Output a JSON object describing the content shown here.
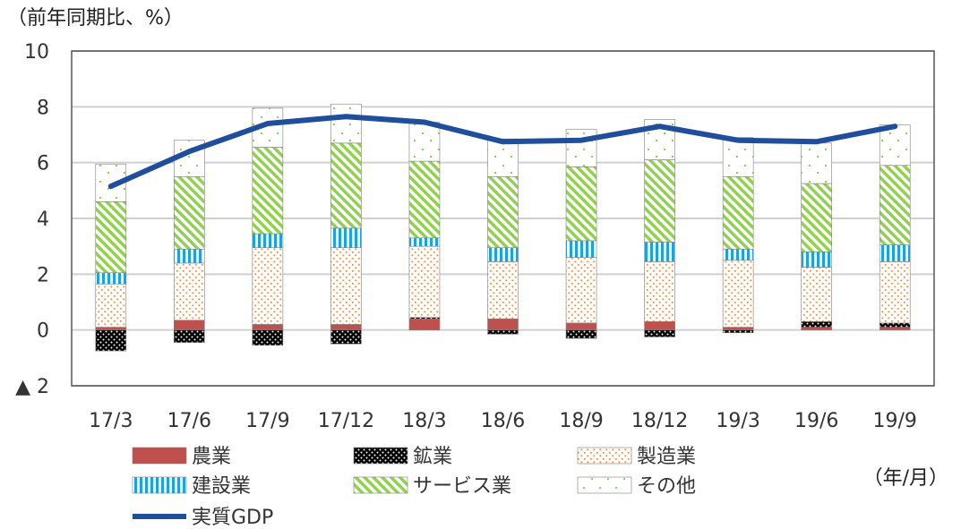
{
  "chart_data": {
    "type": "bar",
    "ylabel": "（前年同期比、%）",
    "xunit": "（年/月）",
    "categories": [
      "17/3",
      "17/6",
      "17/9",
      "17/12",
      "18/3",
      "18/6",
      "18/9",
      "18/12",
      "19/3",
      "19/6",
      "19/9"
    ],
    "ylim": [
      -2,
      10
    ],
    "yticks": [
      10,
      8,
      6,
      4,
      2,
      0,
      -2
    ],
    "ytick_labels": [
      "10",
      "8",
      "6",
      "4",
      "2",
      "0",
      "▲ 2"
    ],
    "grid": true,
    "legend_position": "bottom",
    "stacked_series": [
      {
        "name": "農業",
        "key": "agri",
        "color": "#c0504d",
        "values": [
          0.1,
          0.35,
          0.2,
          0.2,
          0.4,
          0.4,
          0.25,
          0.3,
          0.1,
          0.1,
          0.1
        ]
      },
      {
        "name": "鉱業",
        "key": "mining",
        "color": "#000000",
        "values": [
          -0.75,
          -0.45,
          -0.55,
          -0.5,
          0.05,
          -0.15,
          -0.3,
          -0.25,
          -0.1,
          0.2,
          0.15
        ]
      },
      {
        "name": "製造業",
        "key": "mfg",
        "color": "#f79646",
        "values": [
          1.55,
          2.05,
          2.75,
          2.75,
          2.55,
          2.05,
          2.35,
          2.15,
          2.4,
          1.95,
          2.2
        ]
      },
      {
        "name": "建設業",
        "key": "constr",
        "color": "#1aa3e0",
        "values": [
          0.4,
          0.5,
          0.5,
          0.7,
          0.3,
          0.5,
          0.6,
          0.7,
          0.4,
          0.55,
          0.6
        ]
      },
      {
        "name": "サービス業",
        "key": "service",
        "color": "#92d050",
        "values": [
          2.55,
          2.6,
          3.1,
          3.05,
          2.75,
          2.55,
          2.65,
          2.95,
          2.6,
          2.45,
          2.85
        ]
      },
      {
        "name": "その他",
        "key": "other",
        "color": "#92d050",
        "values": [
          1.35,
          1.3,
          1.4,
          1.4,
          1.4,
          1.35,
          1.35,
          1.45,
          1.4,
          1.45,
          1.45
        ]
      }
    ],
    "line_series": {
      "name": "実質GDP",
      "color": "#1f4e9c",
      "values": [
        5.15,
        6.4,
        7.4,
        7.65,
        7.45,
        6.75,
        6.8,
        7.3,
        6.8,
        6.75,
        7.3
      ]
    }
  }
}
